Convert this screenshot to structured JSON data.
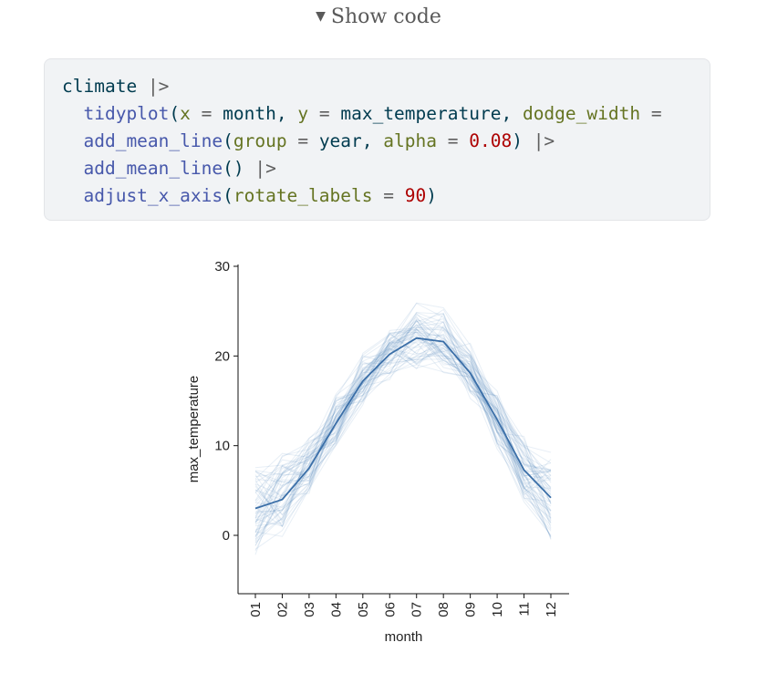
{
  "toggle": {
    "icon": "caret-down-icon",
    "label": "Show code"
  },
  "code": {
    "line1": {
      "obj": "climate",
      "pipe": "|>"
    },
    "line2": {
      "fn": "tidyplot",
      "open": "(",
      "a1": "x",
      "eq": "=",
      "v1": "month,",
      "a2": "y",
      "v2": "max_temperature,",
      "a3": "dodge_width",
      "rest": "="
    },
    "line3": {
      "fn": "add_mean_line",
      "open": "(",
      "a1": "group",
      "eq": "=",
      "v1": "year,",
      "a2": "alpha",
      "v2": "0.08",
      "close": ")",
      "pipe": "|>"
    },
    "line4": {
      "fn": "add_mean_line",
      "call": "()",
      "pipe": "|>"
    },
    "line5": {
      "fn": "adjust_x_axis",
      "open": "(",
      "a1": "rotate_labels",
      "eq": "=",
      "v1": "90",
      "close": ")"
    }
  },
  "chart_data": {
    "type": "line",
    "xlabel": "month",
    "ylabel": "max_temperature",
    "categories": [
      "01",
      "02",
      "03",
      "04",
      "05",
      "06",
      "07",
      "08",
      "09",
      "10",
      "11",
      "12"
    ],
    "ylim": [
      -6.5,
      30
    ],
    "yticks": [
      0,
      10,
      20,
      30
    ],
    "grid": false,
    "color": "#4f80b8",
    "series": [
      {
        "values": [
          3.0,
          4.0,
          7.5,
          12.5,
          17.2,
          20.2,
          22.0,
          21.6,
          18.1,
          12.9,
          7.3,
          4.2
        ]
      }
    ],
    "individual_lines": {
      "note_hidden": true,
      "count": 60,
      "alpha": 0.08,
      "spread": [
        4.5,
        4.5,
        3.0,
        2.5,
        2.5,
        2.5,
        3.0,
        3.0,
        2.5,
        2.5,
        3.0,
        4.5
      ]
    }
  }
}
